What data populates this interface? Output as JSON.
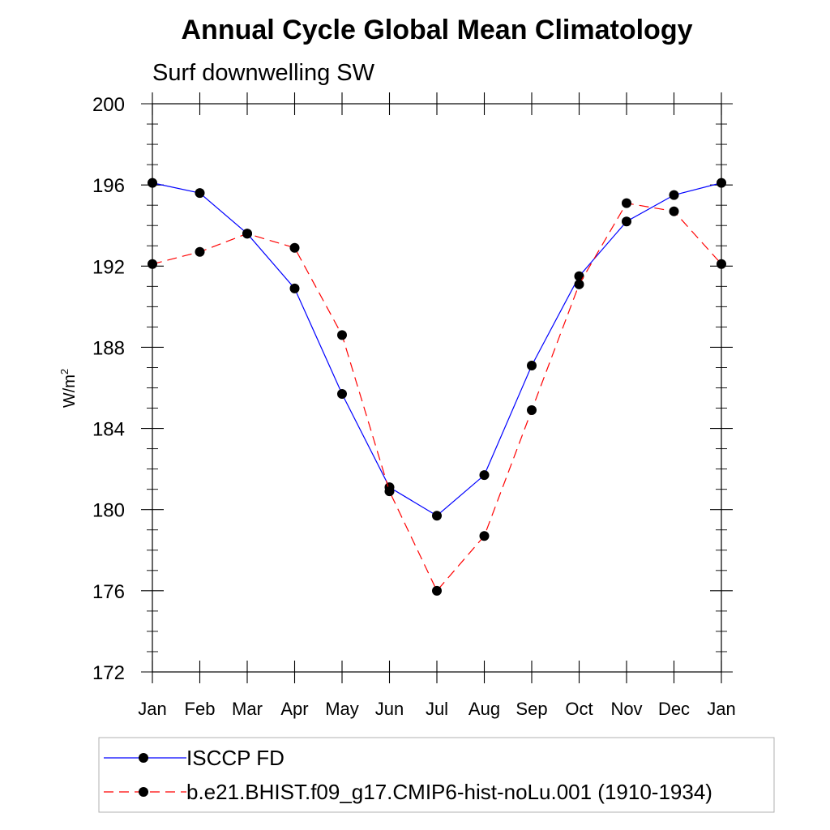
{
  "chart_data": {
    "type": "line",
    "title": "Annual Cycle Global Mean Climatology",
    "subtitle": "Surf downwelling SW",
    "ylabel": "W/m",
    "ylabel_superscript": "2",
    "xlabel": "",
    "categories": [
      "Jan",
      "Feb",
      "Mar",
      "Apr",
      "May",
      "Jun",
      "Jul",
      "Aug",
      "Sep",
      "Oct",
      "Nov",
      "Dec",
      "Jan"
    ],
    "ylim": [
      172,
      200
    ],
    "yticks": [
      172,
      176,
      180,
      184,
      188,
      192,
      196,
      200
    ],
    "series": [
      {
        "name": "ISCCP FD",
        "color": "#0000ff",
        "line_style": "solid",
        "values": [
          196.1,
          195.6,
          193.6,
          190.9,
          185.7,
          181.1,
          179.7,
          181.7,
          187.1,
          191.5,
          194.2,
          195.5,
          196.1
        ]
      },
      {
        "name": "b.e21.BHIST.f09_g17.CMIP6-hist-noLu.001 (1910-1934)",
        "color": "#ff0000",
        "line_style": "dashed",
        "values": [
          192.1,
          192.7,
          193.6,
          192.9,
          188.6,
          180.9,
          176.0,
          178.7,
          184.9,
          191.1,
          195.1,
          194.7,
          192.1
        ]
      }
    ],
    "legend_position": "bottom"
  }
}
